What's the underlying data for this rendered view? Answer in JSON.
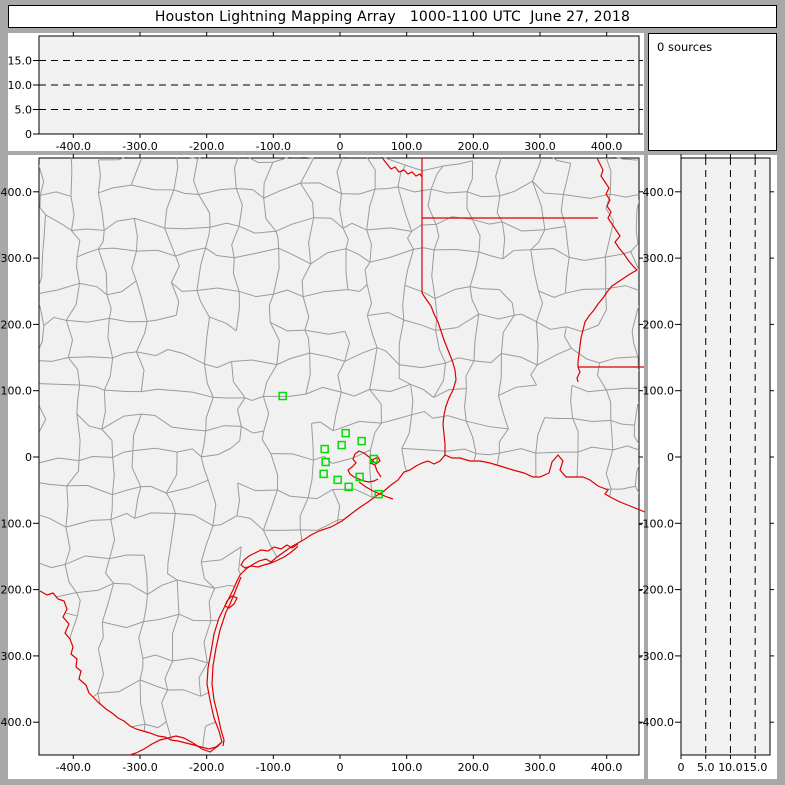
{
  "window": {
    "title": "Houston Lightning Mapping Array   1000-1100 UTC  June 27, 2018"
  },
  "status": {
    "sources_label": "0 sources"
  },
  "colors": {
    "frame": "#a8a8a8",
    "panel_bg": "#ffffff",
    "plot_bg": "#f1f1f1",
    "axis": "#000000",
    "county_lines": "#9b9b9b",
    "state_borders": "#dd0000",
    "station_marker": "#00dd00"
  },
  "chart_data": [
    {
      "type": "scatter",
      "name": "altitude-vs-east-west-distance",
      "position": "top",
      "x_range": [
        -450,
        450
      ],
      "y_range": [
        0,
        20
      ],
      "x_ticks": [
        -400,
        -300,
        -200,
        -100,
        0,
        100,
        200,
        300,
        400
      ],
      "x_tick_labels": [
        "-400.0",
        "-300.0",
        "-200.0",
        "-100.0",
        "0",
        "100.0",
        "200.0",
        "300.0",
        "400.0"
      ],
      "y_ticks": [
        0,
        5,
        10,
        15
      ],
      "y_tick_labels": [
        "0",
        "5.0",
        "10.0",
        "15.0"
      ],
      "gridlines": {
        "style": "dashed",
        "y_values": [
          5,
          10,
          15
        ]
      },
      "points": []
    },
    {
      "type": "scatter",
      "name": "plan-view-map",
      "position": "main",
      "x_range": [
        -450,
        450
      ],
      "y_range": [
        -450,
        450
      ],
      "x_ticks": [
        -400,
        -300,
        -200,
        -100,
        0,
        100,
        200,
        300,
        400
      ],
      "x_tick_labels": [
        "-400.0",
        "-300.0",
        "-200.0",
        "-100.0",
        "0",
        "100.0",
        "200.0",
        "300.0",
        "400.0"
      ],
      "y_ticks": [
        400,
        300,
        200,
        100,
        0,
        -100,
        -200,
        -300,
        -400
      ],
      "y_tick_labels": [
        "400.0",
        "300.0",
        "200.0",
        "100.0",
        "0",
        "-100.0",
        "-200.0",
        "-300.0",
        "-400.0"
      ],
      "map_layers": [
        "county-boundaries",
        "state-borders",
        "coastline",
        "rivers"
      ],
      "stations_km": [
        {
          "x": -86,
          "y": 92
        },
        {
          "x": 8.5,
          "y": 36
        },
        {
          "x": 2.5,
          "y": 18
        },
        {
          "x": 32.5,
          "y": 24
        },
        {
          "x": -23,
          "y": 12
        },
        {
          "x": -21.5,
          "y": -7.5
        },
        {
          "x": 50.5,
          "y": -3
        },
        {
          "x": -24.5,
          "y": -25.5
        },
        {
          "x": -3.5,
          "y": -34.5
        },
        {
          "x": 29.5,
          "y": -30
        },
        {
          "x": 13,
          "y": -45
        },
        {
          "x": 58,
          "y": -56
        }
      ],
      "points": []
    },
    {
      "type": "scatter",
      "name": "altitude-vs-north-south-distance",
      "position": "right",
      "x_range": [
        0,
        18
      ],
      "y_range": [
        -450,
        450
      ],
      "x_ticks": [
        0,
        5,
        10,
        15
      ],
      "x_tick_labels": [
        "0",
        "5.0",
        "10.0",
        "15.0"
      ],
      "y_ticks": [
        400,
        300,
        200,
        100,
        0,
        -100,
        -200,
        -300,
        -400
      ],
      "y_tick_labels": [
        "400.0",
        "300.0",
        "200.0",
        "100.0",
        "0",
        "-100.0",
        "-200.0",
        "-300.0",
        "-400.0"
      ],
      "gridlines": {
        "style": "dashed",
        "x_values": [
          5,
          10,
          15
        ]
      },
      "points": []
    }
  ]
}
